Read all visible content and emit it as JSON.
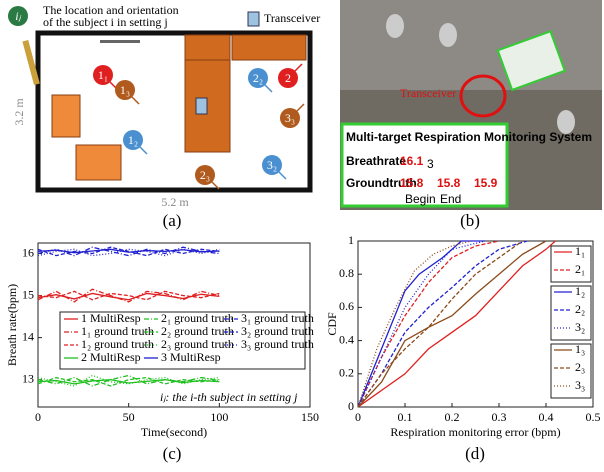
{
  "panels": {
    "a": {
      "caption": "(a)",
      "legend_text_1": "The location and orientation",
      "legend_text_2": "of the subject i in setting j",
      "legend_icon": "iⱼ",
      "transceiver": "Transceiver",
      "height": "3.2 m",
      "width": "5.2 m",
      "markers": [
        "1₁",
        "1₃",
        "2₂",
        "2",
        "3₃",
        "1₂",
        "2₃",
        "3₂"
      ]
    },
    "b": {
      "caption": "(b)",
      "transceiver": "Transceiver",
      "system": "Multi-target Respiration Monitoring System",
      "breathrate": "Breathrate",
      "rate": "16.1",
      "rate_sub": "3",
      "groundtruth": "Groundtruth",
      "gt": [
        "15.8",
        "15.8",
        "15.9"
      ],
      "begin": "Begin",
      "end": "End"
    },
    "c": {
      "caption": "(c)"
    },
    "d": {
      "caption": "(d)"
    }
  },
  "chart_data": [
    {
      "type": "line",
      "xlabel": "Time(second)",
      "ylabel": "Breath rate(bpm)",
      "annotation": "iⱼ: the i-th subject in setting j",
      "xlim": [
        0,
        150
      ],
      "xticks": [
        0,
        50,
        100,
        150
      ],
      "ylim": [
        12.35,
        16.25
      ],
      "yticks": [
        13,
        14,
        15,
        16
      ],
      "x": [
        0,
        10,
        20,
        30,
        40,
        50,
        60,
        70,
        80,
        90,
        100
      ],
      "series": [
        {
          "name": "1 MultiResp",
          "color": "#e02020",
          "style": "solid",
          "values": [
            14.95,
            15.02,
            14.92,
            15.05,
            14.97,
            14.9,
            15.05,
            15.0,
            14.93,
            15.03,
            14.98
          ]
        },
        {
          "name": "1₁ ground truth",
          "color": "#e02020",
          "style": "dashdot",
          "values": [
            14.9,
            15.1,
            14.85,
            15.15,
            15.0,
            14.85,
            15.1,
            15.05,
            14.9,
            15.1,
            15.0
          ]
        },
        {
          "name": "1₂ ground truth",
          "color": "#e02020",
          "style": "dashed",
          "values": [
            15.0,
            14.95,
            15.1,
            14.9,
            15.05,
            15.0,
            14.9,
            15.1,
            15.0,
            14.95,
            15.05
          ]
        },
        {
          "name": "2 MultiResp",
          "color": "#20c020",
          "style": "solid",
          "values": [
            12.95,
            12.98,
            12.9,
            12.97,
            13.0,
            12.92,
            12.96,
            13.0,
            12.93,
            12.98,
            12.95
          ]
        },
        {
          "name": "2₁ ground truth",
          "color": "#20c020",
          "style": "dashdot",
          "values": [
            13.0,
            12.9,
            13.05,
            12.85,
            13.0,
            13.1,
            12.9,
            13.0,
            12.95,
            13.05,
            12.98
          ]
        },
        {
          "name": "2₂ ground truth",
          "color": "#20c020",
          "style": "dashed",
          "values": [
            12.9,
            13.05,
            12.95,
            13.0,
            12.85,
            13.0,
            13.05,
            12.9,
            13.0,
            12.95,
            13.0
          ]
        },
        {
          "name": "2₃ ground truth",
          "color": "#20c020",
          "style": "dotted",
          "values": [
            13.05,
            12.95,
            12.85,
            13.1,
            12.95,
            12.9,
            13.0,
            13.05,
            12.9,
            13.0,
            13.05
          ]
        },
        {
          "name": "3 MultiResp",
          "color": "#2020d0",
          "style": "solid",
          "values": [
            16.05,
            16.08,
            16.02,
            16.06,
            16.1,
            16.03,
            16.07,
            16.05,
            16.09,
            16.04,
            16.06
          ]
        },
        {
          "name": "3₁ ground truth",
          "color": "#2020d0",
          "style": "dashdot",
          "values": [
            16.0,
            16.1,
            15.95,
            16.15,
            16.05,
            15.95,
            16.1,
            16.0,
            16.15,
            16.05,
            16.0
          ]
        },
        {
          "name": "3₂ ground truth",
          "color": "#2020d0",
          "style": "dashed",
          "values": [
            16.1,
            15.95,
            16.05,
            16.0,
            16.15,
            16.05,
            15.95,
            16.1,
            16.0,
            16.1,
            16.05
          ]
        },
        {
          "name": "3₃ ground truth",
          "color": "#2020d0",
          "style": "dotted",
          "values": [
            15.95,
            16.05,
            16.1,
            15.95,
            16.0,
            16.1,
            16.05,
            15.95,
            16.1,
            16.0,
            16.1
          ]
        }
      ]
    },
    {
      "type": "line",
      "xlabel": "Respiration monitoring error (bpm)",
      "ylabel": "CDF",
      "xlim": [
        0,
        0.5
      ],
      "xticks": [
        0,
        0.1,
        0.2,
        0.3,
        0.4,
        0.5
      ],
      "ylim": [
        0,
        1
      ],
      "yticks": [
        0,
        0.2,
        0.4,
        0.6,
        0.8,
        1
      ],
      "series": [
        {
          "name": "1₁",
          "color": "#e02020",
          "style": "solid",
          "x": [
            0,
            0.1,
            0.15,
            0.2,
            0.25,
            0.3,
            0.35,
            0.4,
            0.42
          ],
          "values": [
            0,
            0.2,
            0.35,
            0.45,
            0.55,
            0.7,
            0.85,
            0.95,
            1
          ]
        },
        {
          "name": "2₁",
          "color": "#e02020",
          "style": "dashed",
          "x": [
            0,
            0.05,
            0.1,
            0.15,
            0.2,
            0.25,
            0.3
          ],
          "values": [
            0,
            0.3,
            0.55,
            0.75,
            0.9,
            0.97,
            1
          ]
        },
        {
          "name": "1₂",
          "color": "#2020d0",
          "style": "solid",
          "x": [
            0,
            0.05,
            0.1,
            0.13,
            0.18,
            0.22,
            0.27
          ],
          "values": [
            0,
            0.35,
            0.7,
            0.8,
            0.9,
            1,
            1
          ]
        },
        {
          "name": "2₂",
          "color": "#2020d0",
          "style": "dashed",
          "x": [
            0,
            0.05,
            0.1,
            0.15,
            0.2,
            0.25,
            0.3,
            0.36
          ],
          "values": [
            0,
            0.2,
            0.45,
            0.6,
            0.72,
            0.85,
            0.95,
            1
          ]
        },
        {
          "name": "3₂",
          "color": "#2020d0",
          "style": "dotted",
          "x": [
            0,
            0.05,
            0.1,
            0.15,
            0.2,
            0.27
          ],
          "values": [
            0,
            0.3,
            0.6,
            0.8,
            0.95,
            1
          ]
        },
        {
          "name": "1₃",
          "color": "#8b4a1a",
          "style": "solid",
          "x": [
            0,
            0.05,
            0.1,
            0.15,
            0.2,
            0.25,
            0.3,
            0.35,
            0.4
          ],
          "values": [
            0,
            0.15,
            0.4,
            0.48,
            0.55,
            0.68,
            0.8,
            0.92,
            1
          ]
        },
        {
          "name": "2₃",
          "color": "#8b4a1a",
          "style": "dashed",
          "x": [
            0,
            0.05,
            0.1,
            0.15,
            0.2,
            0.25,
            0.3,
            0.35
          ],
          "values": [
            0,
            0.2,
            0.35,
            0.48,
            0.65,
            0.8,
            0.9,
            1
          ]
        },
        {
          "name": "3₃",
          "color": "#8b4a1a",
          "style": "dotted",
          "x": [
            0,
            0.04,
            0.08,
            0.12,
            0.16,
            0.2,
            0.24
          ],
          "values": [
            0,
            0.35,
            0.6,
            0.82,
            0.92,
            0.97,
            1
          ]
        }
      ]
    }
  ]
}
